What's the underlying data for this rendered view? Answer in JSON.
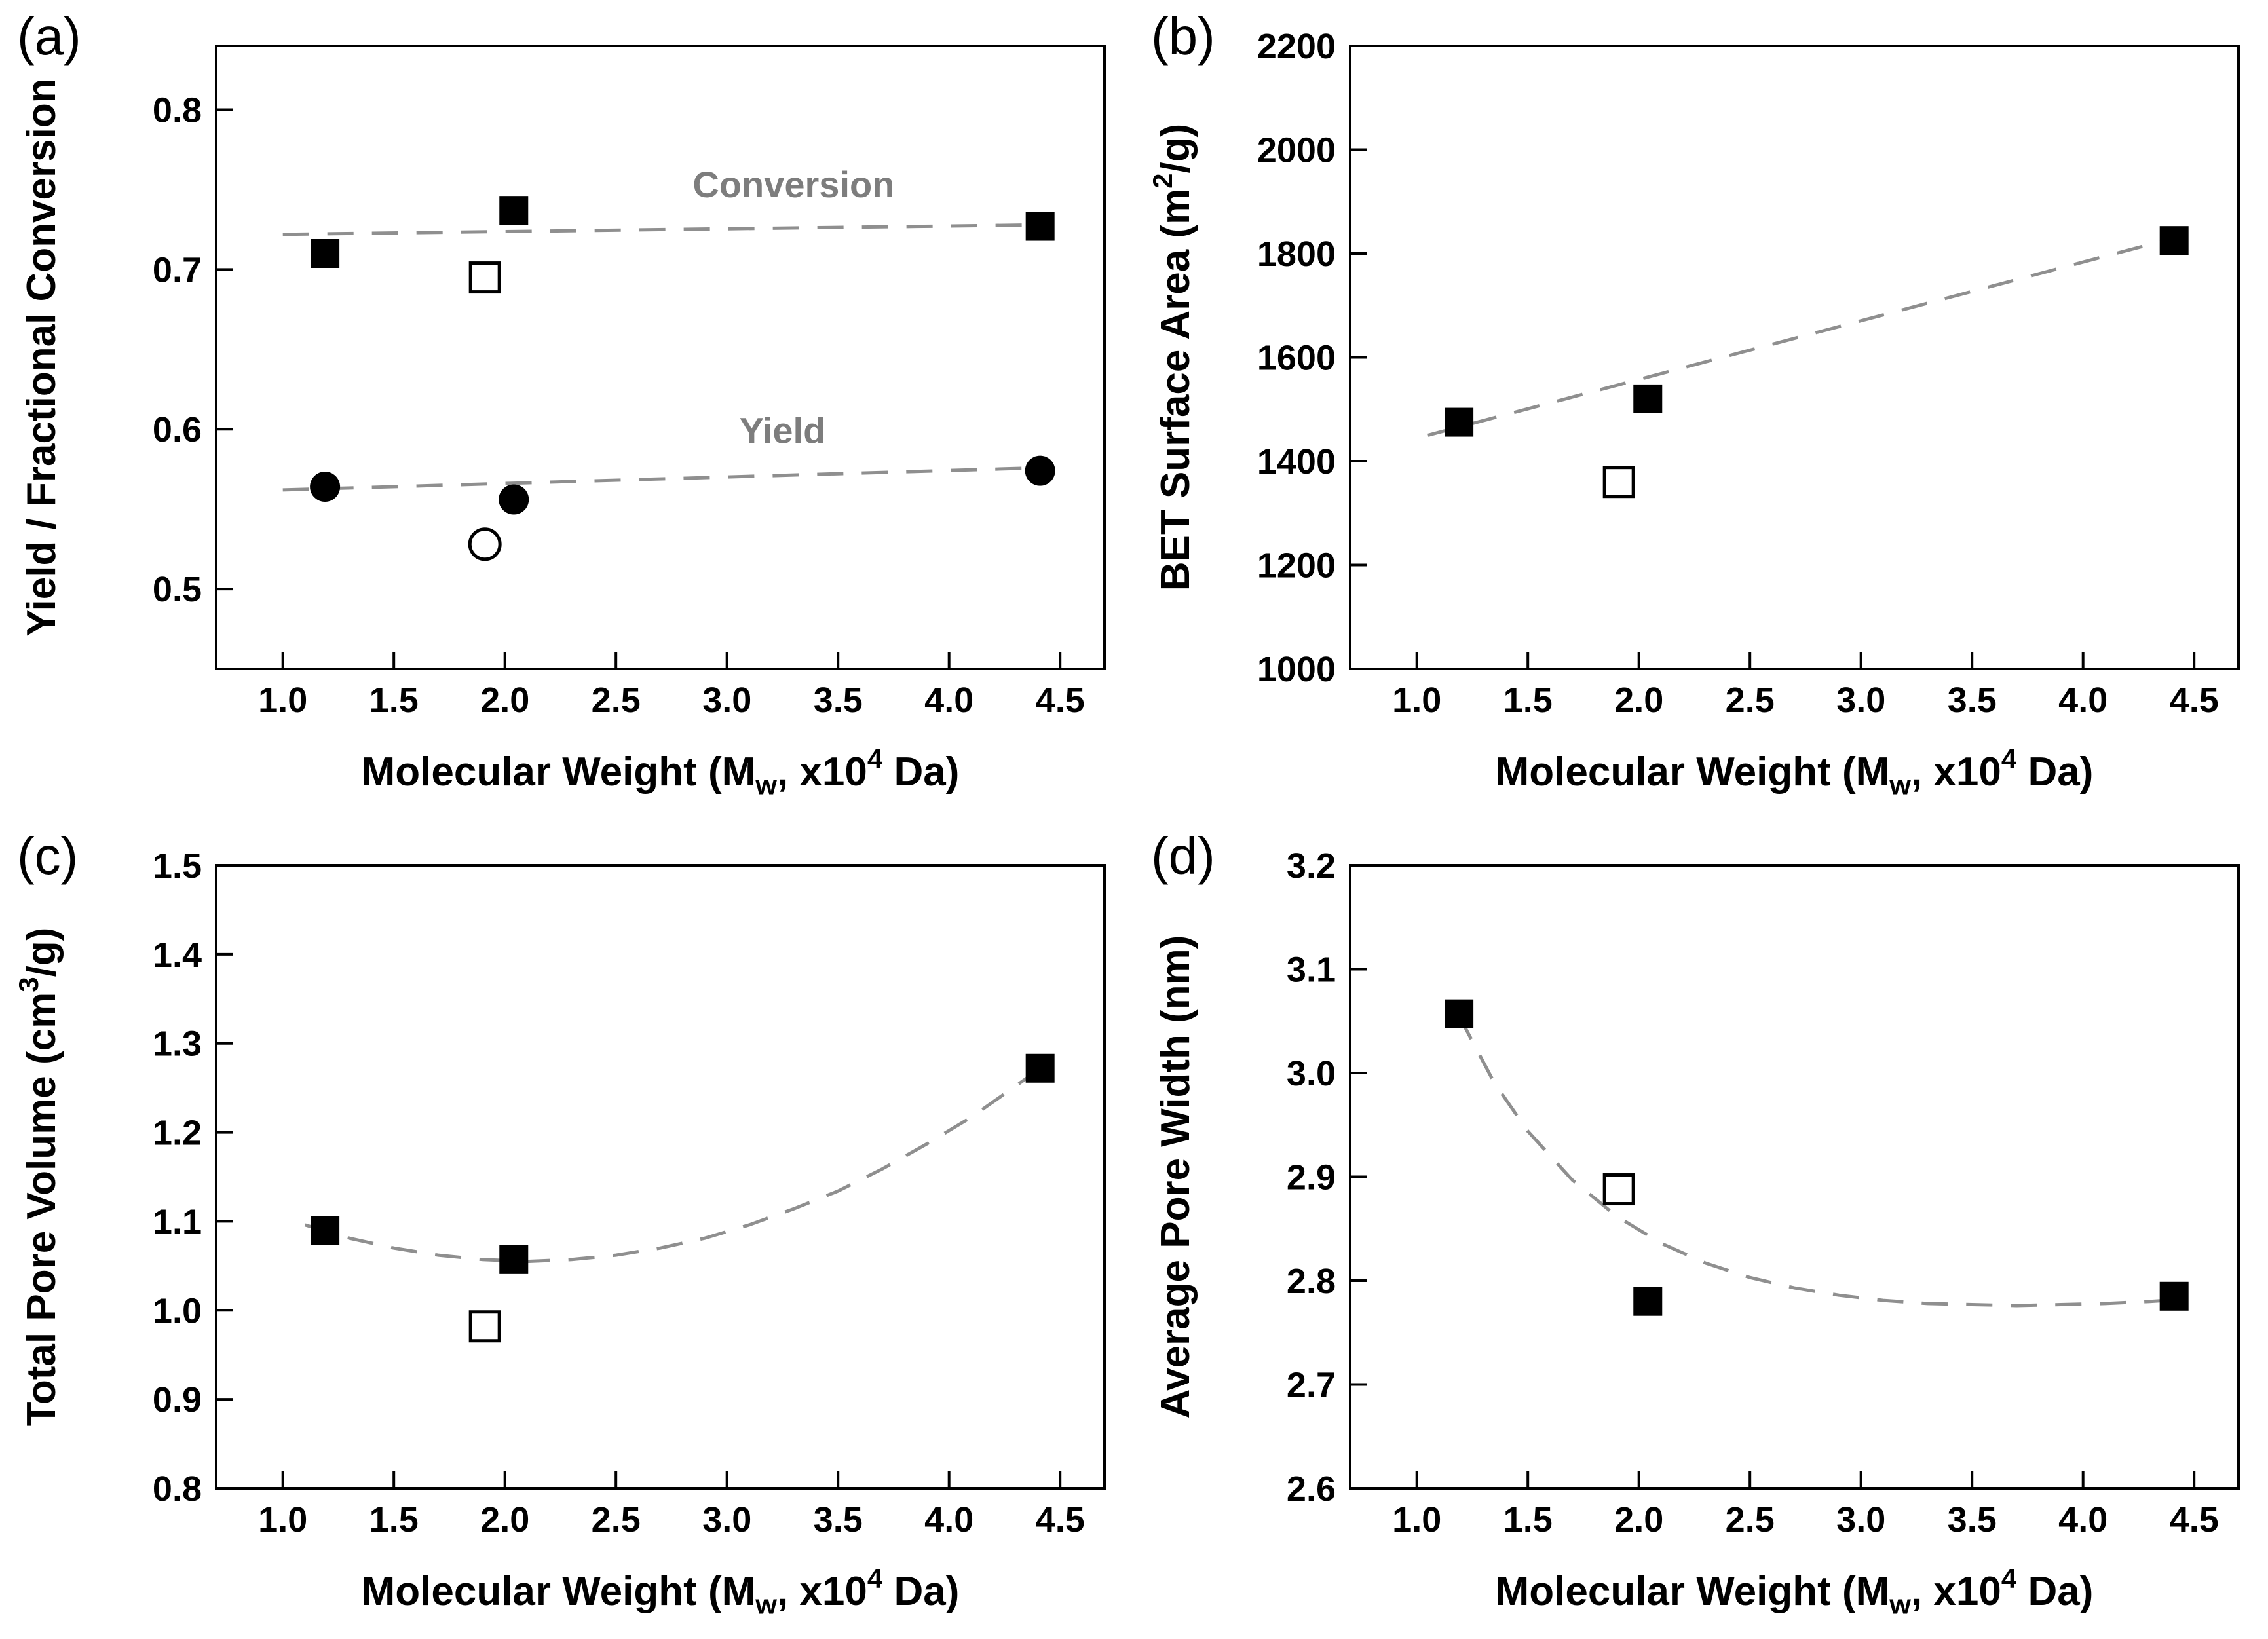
{
  "figure": {
    "background": "#ffffff"
  },
  "colors": {
    "marker": "#000000",
    "open_marker_fill": "#ffffff",
    "trend": "#8f8f8f",
    "annotation": "#7d7d7d",
    "frame": "#000000",
    "tick_text": "#000000"
  },
  "chart_data": [
    {
      "panel_label": "(a)",
      "type": "scatter",
      "xlabel_parts": [
        {
          "t": "Molecular Weight (M"
        },
        {
          "t": "w",
          "sub": true
        },
        {
          "t": ", x10"
        },
        {
          "t": "4",
          "sup": true
        },
        {
          "t": " Da)"
        }
      ],
      "ylabel_parts": [
        {
          "t": "Yield / Fractional Conversion"
        }
      ],
      "xlim": [
        0.7,
        4.7
      ],
      "ylim": [
        0.45,
        0.84
      ],
      "xticks": [
        {
          "v": 1.0,
          "label": "1.0"
        },
        {
          "v": 1.5,
          "label": "1.5"
        },
        {
          "v": 2.0,
          "label": "2.0"
        },
        {
          "v": 2.5,
          "label": "2.5"
        },
        {
          "v": 3.0,
          "label": "3.0"
        },
        {
          "v": 3.5,
          "label": "3.5"
        },
        {
          "v": 4.0,
          "label": "4.0"
        },
        {
          "v": 4.5,
          "label": "4.5"
        }
      ],
      "yticks": [
        {
          "v": 0.5,
          "label": "0.5"
        },
        {
          "v": 0.6,
          "label": "0.6"
        },
        {
          "v": 0.7,
          "label": "0.7"
        },
        {
          "v": 0.8,
          "label": "0.8"
        }
      ],
      "series": [
        {
          "id": "conversion-filled",
          "name": "Conversion",
          "marker": "square",
          "fill": "filled",
          "points": [
            [
              1.19,
              0.71
            ],
            [
              2.04,
              0.737
            ],
            [
              4.41,
              0.727
            ]
          ]
        },
        {
          "id": "conversion-open",
          "marker": "square",
          "fill": "open",
          "points": [
            [
              1.91,
              0.695
            ]
          ]
        },
        {
          "id": "yield-filled",
          "name": "Yield",
          "marker": "circle",
          "fill": "filled",
          "points": [
            [
              1.19,
              0.564
            ],
            [
              2.04,
              0.556
            ],
            [
              4.41,
              0.574
            ]
          ]
        },
        {
          "id": "yield-open",
          "marker": "circle",
          "fill": "open",
          "points": [
            [
              1.91,
              0.528
            ]
          ]
        }
      ],
      "trends": [
        {
          "id": "conversion-trend",
          "points": [
            [
              1.0,
              0.722
            ],
            [
              4.45,
              0.728
            ]
          ]
        },
        {
          "id": "yield-trend",
          "points": [
            [
              1.0,
              0.562
            ],
            [
              4.45,
              0.576
            ]
          ]
        }
      ],
      "annotations": [
        {
          "text": "Conversion",
          "x": 3.3,
          "y": 0.753
        },
        {
          "text": "Yield",
          "x": 3.25,
          "y": 0.599
        }
      ]
    },
    {
      "panel_label": "(b)",
      "type": "scatter",
      "xlabel_parts": [
        {
          "t": "Molecular Weight (M"
        },
        {
          "t": "w",
          "sub": true
        },
        {
          "t": ", x10"
        },
        {
          "t": "4",
          "sup": true
        },
        {
          "t": " Da)"
        }
      ],
      "ylabel_parts": [
        {
          "t": "BET Surface Area (m"
        },
        {
          "t": "2",
          "sup": true
        },
        {
          "t": "/g)"
        }
      ],
      "xlim": [
        0.7,
        4.7
      ],
      "ylim": [
        1000,
        2200
      ],
      "xticks": [
        {
          "v": 1.0,
          "label": "1.0"
        },
        {
          "v": 1.5,
          "label": "1.5"
        },
        {
          "v": 2.0,
          "label": "2.0"
        },
        {
          "v": 2.5,
          "label": "2.5"
        },
        {
          "v": 3.0,
          "label": "3.0"
        },
        {
          "v": 3.5,
          "label": "3.5"
        },
        {
          "v": 4.0,
          "label": "4.0"
        },
        {
          "v": 4.5,
          "label": "4.5"
        }
      ],
      "yticks": [
        {
          "v": 1000,
          "label": "1000"
        },
        {
          "v": 1200,
          "label": "1200"
        },
        {
          "v": 1400,
          "label": "1400"
        },
        {
          "v": 1600,
          "label": "1600"
        },
        {
          "v": 1800,
          "label": "1800"
        },
        {
          "v": 2000,
          "label": "2000"
        },
        {
          "v": 2200,
          "label": "2200"
        }
      ],
      "series": [
        {
          "id": "bet-filled",
          "marker": "square",
          "fill": "filled",
          "points": [
            [
              1.19,
              1475
            ],
            [
              2.04,
              1520
            ],
            [
              4.41,
              1825
            ]
          ]
        },
        {
          "id": "bet-open",
          "marker": "square",
          "fill": "open",
          "points": [
            [
              1.91,
              1360
            ]
          ]
        }
      ],
      "trends": [
        {
          "id": "bet-trend",
          "points": [
            [
              1.05,
              1450
            ],
            [
              4.5,
              1840
            ]
          ]
        }
      ],
      "annotations": []
    },
    {
      "panel_label": "(c)",
      "type": "scatter",
      "xlabel_parts": [
        {
          "t": "Molecular Weight (M"
        },
        {
          "t": "w",
          "sub": true
        },
        {
          "t": ", x10"
        },
        {
          "t": "4",
          "sup": true
        },
        {
          "t": " Da)"
        }
      ],
      "ylabel_parts": [
        {
          "t": "Total Pore Volume (cm"
        },
        {
          "t": "3",
          "sup": true
        },
        {
          "t": "/g)"
        }
      ],
      "xlim": [
        0.7,
        4.7
      ],
      "ylim": [
        0.8,
        1.5
      ],
      "xticks": [
        {
          "v": 1.0,
          "label": "1.0"
        },
        {
          "v": 1.5,
          "label": "1.5"
        },
        {
          "v": 2.0,
          "label": "2.0"
        },
        {
          "v": 2.5,
          "label": "2.5"
        },
        {
          "v": 3.0,
          "label": "3.0"
        },
        {
          "v": 3.5,
          "label": "3.5"
        },
        {
          "v": 4.0,
          "label": "4.0"
        },
        {
          "v": 4.5,
          "label": "4.5"
        }
      ],
      "yticks": [
        {
          "v": 0.8,
          "label": "0.8"
        },
        {
          "v": 0.9,
          "label": "0.9"
        },
        {
          "v": 1.0,
          "label": "1.0"
        },
        {
          "v": 1.1,
          "label": "1.1"
        },
        {
          "v": 1.2,
          "label": "1.2"
        },
        {
          "v": 1.3,
          "label": "1.3"
        },
        {
          "v": 1.4,
          "label": "1.4"
        },
        {
          "v": 1.5,
          "label": "1.5"
        }
      ],
      "series": [
        {
          "id": "tpv-filled",
          "marker": "square",
          "fill": "filled",
          "points": [
            [
              1.19,
              1.09
            ],
            [
              2.04,
              1.057
            ],
            [
              4.41,
              1.272
            ]
          ]
        },
        {
          "id": "tpv-open",
          "marker": "square",
          "fill": "open",
          "points": [
            [
              1.91,
              0.982
            ]
          ]
        }
      ],
      "trends": [
        {
          "id": "tpv-trend",
          "points": [
            [
              1.1,
              1.096
            ],
            [
              1.3,
              1.081
            ],
            [
              1.5,
              1.07
            ],
            [
              1.7,
              1.062
            ],
            [
              1.9,
              1.057
            ],
            [
              2.1,
              1.055
            ],
            [
              2.3,
              1.057
            ],
            [
              2.5,
              1.062
            ],
            [
              2.7,
              1.07
            ],
            [
              2.9,
              1.081
            ],
            [
              3.1,
              1.096
            ],
            [
              3.3,
              1.114
            ],
            [
              3.5,
              1.134
            ],
            [
              3.7,
              1.159
            ],
            [
              3.9,
              1.187
            ],
            [
              4.1,
              1.217
            ],
            [
              4.3,
              1.252
            ],
            [
              4.45,
              1.279
            ]
          ]
        }
      ],
      "annotations": []
    },
    {
      "panel_label": "(d)",
      "type": "scatter",
      "xlabel_parts": [
        {
          "t": "Molecular Weight (M"
        },
        {
          "t": "w",
          "sub": true
        },
        {
          "t": ", x10"
        },
        {
          "t": "4",
          "sup": true
        },
        {
          "t": " Da)"
        }
      ],
      "ylabel_parts": [
        {
          "t": "Average Pore Width (nm)"
        }
      ],
      "xlim": [
        0.7,
        4.7
      ],
      "ylim": [
        2.6,
        3.2
      ],
      "xticks": [
        {
          "v": 1.0,
          "label": "1.0"
        },
        {
          "v": 1.5,
          "label": "1.5"
        },
        {
          "v": 2.0,
          "label": "2.0"
        },
        {
          "v": 2.5,
          "label": "2.5"
        },
        {
          "v": 3.0,
          "label": "3.0"
        },
        {
          "v": 3.5,
          "label": "3.5"
        },
        {
          "v": 4.0,
          "label": "4.0"
        },
        {
          "v": 4.5,
          "label": "4.5"
        }
      ],
      "yticks": [
        {
          "v": 2.6,
          "label": "2.6"
        },
        {
          "v": 2.7,
          "label": "2.7"
        },
        {
          "v": 2.8,
          "label": "2.8"
        },
        {
          "v": 2.9,
          "label": "2.9"
        },
        {
          "v": 3.0,
          "label": "3.0"
        },
        {
          "v": 3.1,
          "label": "3.1"
        },
        {
          "v": 3.2,
          "label": "3.2"
        }
      ],
      "series": [
        {
          "id": "apw-filled",
          "marker": "square",
          "fill": "filled",
          "points": [
            [
              1.19,
              3.057
            ],
            [
              2.04,
              2.78
            ],
            [
              4.41,
              2.785
            ]
          ]
        },
        {
          "id": "apw-open",
          "marker": "square",
          "fill": "open",
          "points": [
            [
              1.91,
              2.888
            ]
          ]
        }
      ],
      "trends": [
        {
          "id": "apw-trend",
          "points": [
            [
              1.19,
              3.055
            ],
            [
              1.35,
              2.99
            ],
            [
              1.5,
              2.944
            ],
            [
              1.7,
              2.897
            ],
            [
              1.9,
              2.862
            ],
            [
              2.1,
              2.836
            ],
            [
              2.3,
              2.817
            ],
            [
              2.5,
              2.803
            ],
            [
              2.7,
              2.793
            ],
            [
              2.9,
              2.786
            ],
            [
              3.1,
              2.781
            ],
            [
              3.3,
              2.778
            ],
            [
              3.5,
              2.777
            ],
            [
              3.7,
              2.776
            ],
            [
              3.9,
              2.777
            ],
            [
              4.1,
              2.778
            ],
            [
              4.3,
              2.78
            ],
            [
              4.45,
              2.782
            ]
          ]
        }
      ],
      "annotations": []
    }
  ]
}
